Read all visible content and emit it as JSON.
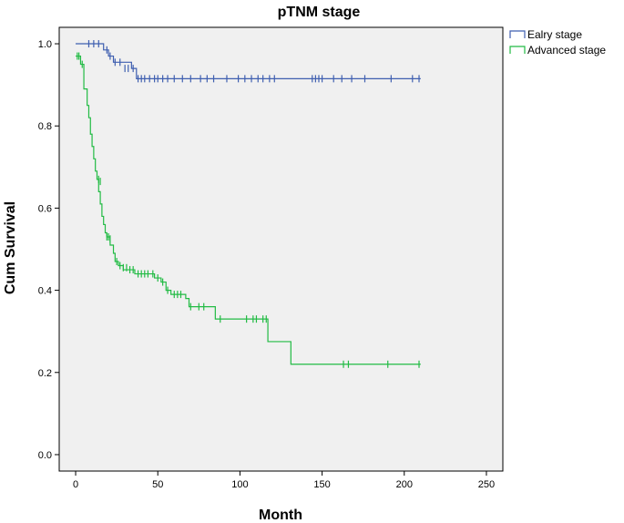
{
  "chart_data": {
    "type": "line",
    "title": "pTNM stage",
    "xlabel": "Month",
    "ylabel": "Cum Survival",
    "xlim": [
      -10,
      260
    ],
    "ylim": [
      -0.04,
      1.04
    ],
    "xticks": [
      0,
      50,
      100,
      150,
      200,
      250
    ],
    "xtick_labels": [
      "0",
      "50",
      "100",
      "150",
      "200",
      "250"
    ],
    "yticks": [
      0.0,
      0.2,
      0.4,
      0.6,
      0.8,
      1.0
    ],
    "ytick_labels": [
      "0.0",
      "0.2",
      "0.4",
      "0.6",
      "0.8",
      "1.0"
    ],
    "grid": false,
    "legend_position": "right",
    "background": "#f0f0f0",
    "series": [
      {
        "name": "Ealry stage",
        "color": "#3f5fb0",
        "steps": [
          [
            0,
            1.0
          ],
          [
            17,
            0.985
          ],
          [
            20,
            0.97
          ],
          [
            23,
            0.955
          ],
          [
            34,
            0.94
          ],
          [
            37,
            0.915
          ],
          [
            210,
            0.915
          ]
        ],
        "censored": [
          [
            8,
            1.0
          ],
          [
            11,
            1.0
          ],
          [
            14,
            1.0
          ],
          [
            19,
            0.985
          ],
          [
            21,
            0.97
          ],
          [
            24,
            0.955
          ],
          [
            27,
            0.955
          ],
          [
            30,
            0.94
          ],
          [
            32,
            0.94
          ],
          [
            35,
            0.94
          ],
          [
            38,
            0.915
          ],
          [
            40,
            0.915
          ],
          [
            42,
            0.915
          ],
          [
            45,
            0.915
          ],
          [
            48,
            0.915
          ],
          [
            50,
            0.915
          ],
          [
            53,
            0.915
          ],
          [
            56,
            0.915
          ],
          [
            60,
            0.915
          ],
          [
            65,
            0.915
          ],
          [
            70,
            0.915
          ],
          [
            76,
            0.915
          ],
          [
            80,
            0.915
          ],
          [
            84,
            0.915
          ],
          [
            92,
            0.915
          ],
          [
            99,
            0.915
          ],
          [
            103,
            0.915
          ],
          [
            107,
            0.915
          ],
          [
            111,
            0.915
          ],
          [
            114,
            0.915
          ],
          [
            118,
            0.915
          ],
          [
            121,
            0.915
          ],
          [
            144,
            0.915
          ],
          [
            146,
            0.915
          ],
          [
            148,
            0.915
          ],
          [
            150,
            0.915
          ],
          [
            157,
            0.915
          ],
          [
            162,
            0.915
          ],
          [
            168,
            0.915
          ],
          [
            176,
            0.915
          ],
          [
            192,
            0.915
          ],
          [
            205,
            0.915
          ],
          [
            209,
            0.915
          ]
        ]
      },
      {
        "name": "Advanced stage",
        "color": "#22bb44",
        "steps": [
          [
            0,
            0.97
          ],
          [
            3,
            0.95
          ],
          [
            5,
            0.89
          ],
          [
            7,
            0.85
          ],
          [
            8,
            0.82
          ],
          [
            9,
            0.78
          ],
          [
            10,
            0.75
          ],
          [
            11,
            0.72
          ],
          [
            12,
            0.69
          ],
          [
            13,
            0.67
          ],
          [
            14,
            0.64
          ],
          [
            15,
            0.61
          ],
          [
            16,
            0.58
          ],
          [
            17,
            0.56
          ],
          [
            18,
            0.54
          ],
          [
            19,
            0.53
          ],
          [
            21,
            0.51
          ],
          [
            23,
            0.49
          ],
          [
            24,
            0.47
          ],
          [
            26,
            0.46
          ],
          [
            29,
            0.45
          ],
          [
            33,
            0.45
          ],
          [
            36,
            0.44
          ],
          [
            48,
            0.43
          ],
          [
            52,
            0.42
          ],
          [
            55,
            0.4
          ],
          [
            58,
            0.39
          ],
          [
            67,
            0.38
          ],
          [
            69,
            0.36
          ],
          [
            85,
            0.33
          ],
          [
            115,
            0.33
          ],
          [
            117,
            0.275
          ],
          [
            131,
            0.22
          ],
          [
            210,
            0.22
          ]
        ],
        "censored": [
          [
            1,
            0.97
          ],
          [
            2,
            0.97
          ],
          [
            4,
            0.95
          ],
          [
            14,
            0.67
          ],
          [
            15,
            0.665
          ],
          [
            19,
            0.53
          ],
          [
            20,
            0.53
          ],
          [
            21,
            0.525
          ],
          [
            25,
            0.47
          ],
          [
            27,
            0.46
          ],
          [
            29,
            0.455
          ],
          [
            31,
            0.455
          ],
          [
            33,
            0.45
          ],
          [
            35,
            0.45
          ],
          [
            38,
            0.44
          ],
          [
            40,
            0.44
          ],
          [
            42,
            0.44
          ],
          [
            44,
            0.44
          ],
          [
            47,
            0.44
          ],
          [
            50,
            0.43
          ],
          [
            53,
            0.42
          ],
          [
            56,
            0.4
          ],
          [
            60,
            0.39
          ],
          [
            62,
            0.39
          ],
          [
            64,
            0.39
          ],
          [
            70,
            0.36
          ],
          [
            75,
            0.36
          ],
          [
            78,
            0.36
          ],
          [
            88,
            0.33
          ],
          [
            104,
            0.33
          ],
          [
            108,
            0.33
          ],
          [
            110,
            0.33
          ],
          [
            114,
            0.33
          ],
          [
            116,
            0.33
          ],
          [
            163,
            0.22
          ],
          [
            166,
            0.22
          ],
          [
            190,
            0.22
          ],
          [
            209,
            0.22
          ]
        ]
      }
    ]
  }
}
